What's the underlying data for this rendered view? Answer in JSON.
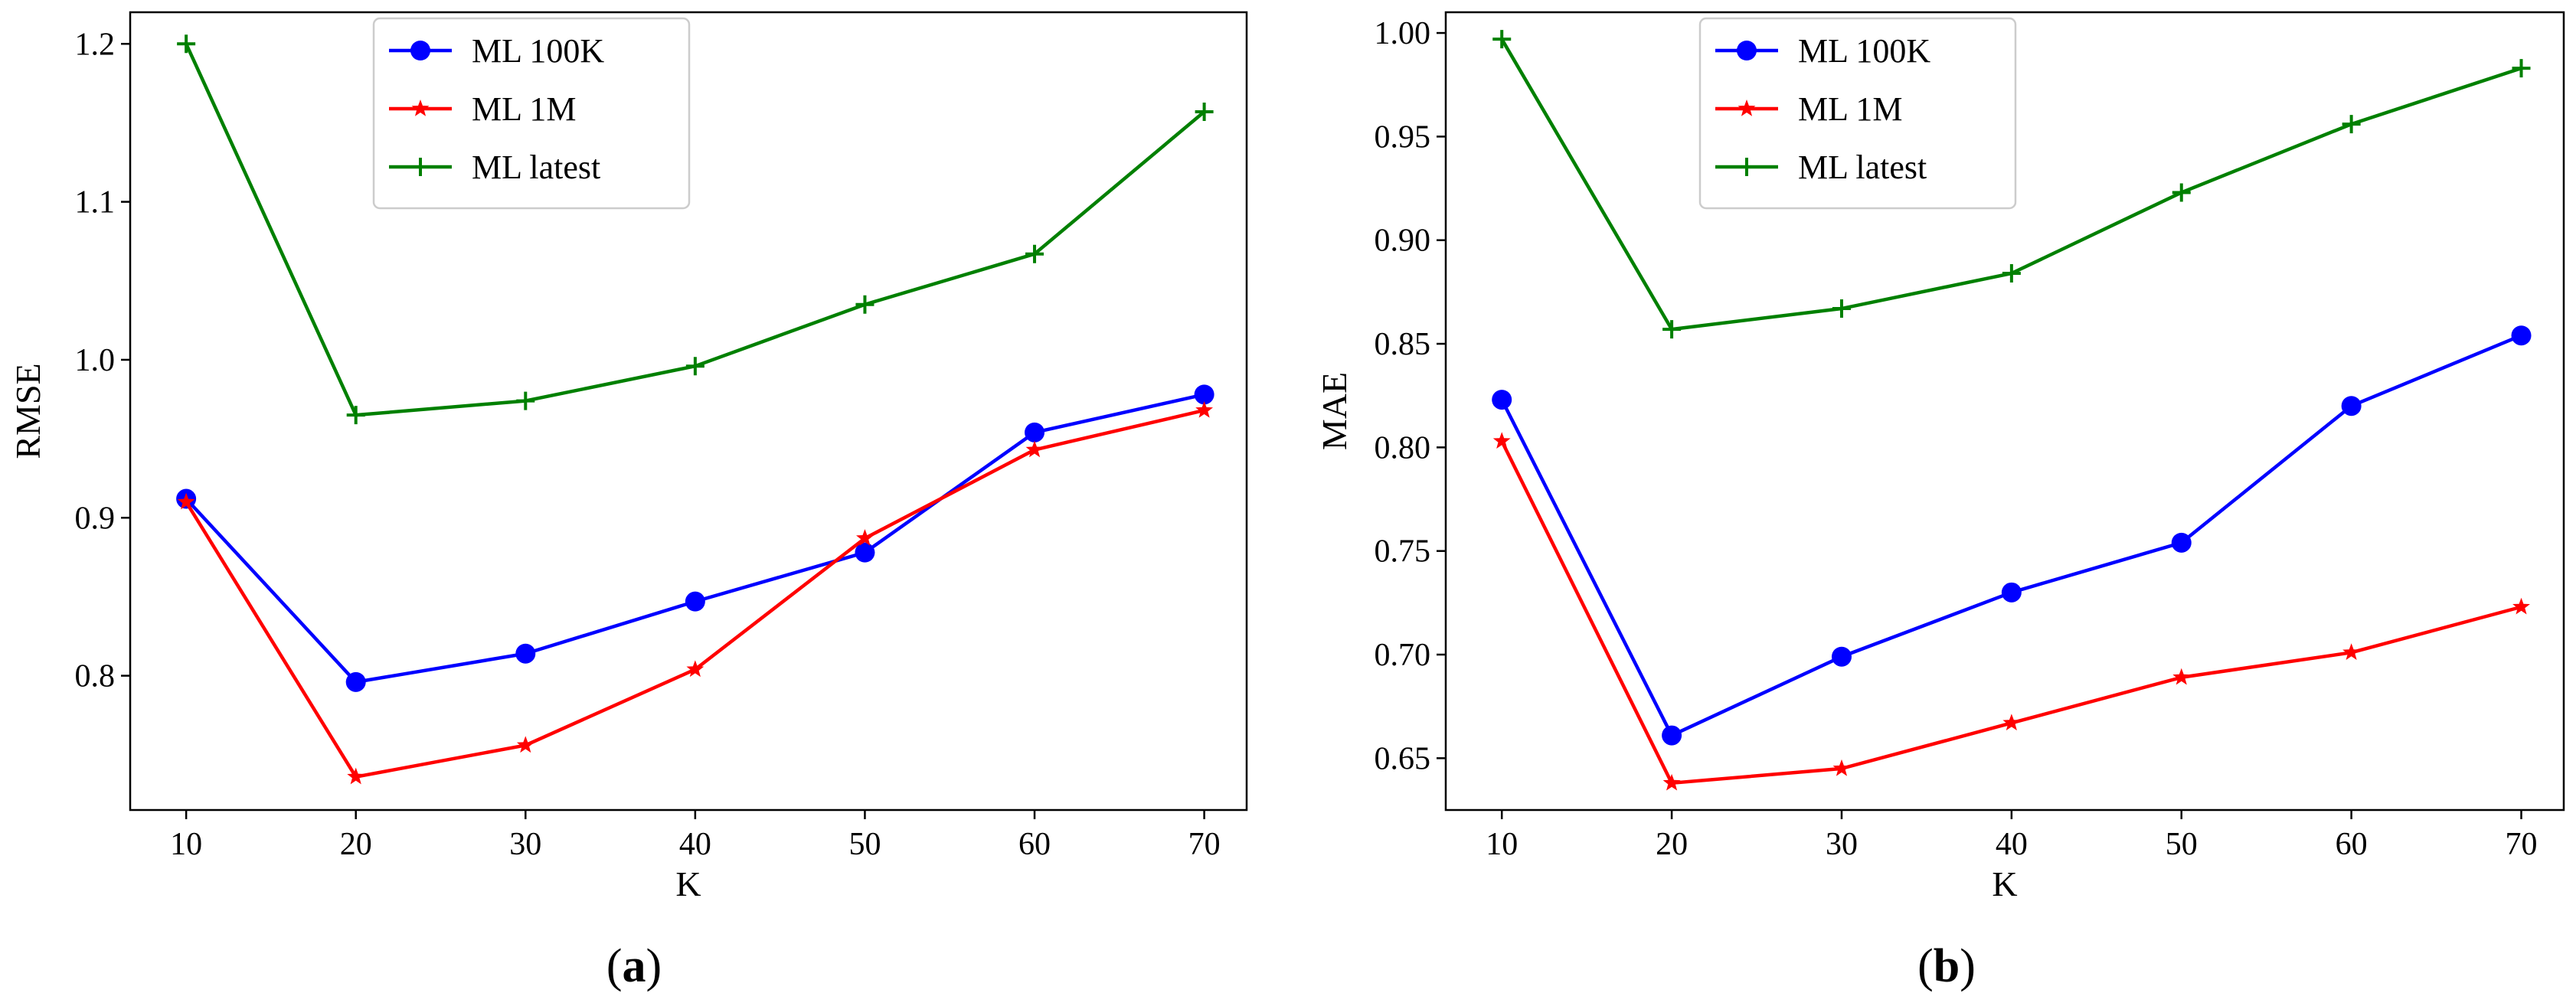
{
  "chart_data": [
    {
      "type": "line",
      "panel_label": "a",
      "xlabel": "K",
      "ylabel": "RMSE",
      "x": [
        10,
        20,
        30,
        40,
        50,
        60,
        70
      ],
      "xticks": [
        "10",
        "20",
        "30",
        "40",
        "50",
        "60",
        "70"
      ],
      "yticks": [
        "0.8",
        "0.9",
        "1.0",
        "1.1",
        "1.2"
      ],
      "ylim": [
        0.715,
        1.22
      ],
      "grid": false,
      "legend": "upper-center",
      "series": [
        {
          "name": "ML 100K",
          "color": "#0000ff",
          "marker": "circle",
          "values": [
            0.912,
            0.796,
            0.814,
            0.847,
            0.878,
            0.954,
            0.978
          ]
        },
        {
          "name": "ML 1M",
          "color": "#ff0000",
          "marker": "star",
          "values": [
            0.91,
            0.736,
            0.756,
            0.804,
            0.887,
            0.943,
            0.968
          ]
        },
        {
          "name": "ML latest",
          "color": "#008000",
          "marker": "plus",
          "values": [
            1.2,
            0.965,
            0.974,
            0.996,
            1.035,
            1.067,
            1.157
          ]
        }
      ]
    },
    {
      "type": "line",
      "panel_label": "b",
      "xlabel": "K",
      "ylabel": "MAE",
      "x": [
        10,
        20,
        30,
        40,
        50,
        60,
        70
      ],
      "xticks": [
        "10",
        "20",
        "30",
        "40",
        "50",
        "60",
        "70"
      ],
      "yticks": [
        "0.65",
        "0.70",
        "0.75",
        "0.80",
        "0.85",
        "0.90",
        "0.95",
        "1.00"
      ],
      "ylim": [
        0.625,
        1.01
      ],
      "grid": false,
      "legend": "upper-center",
      "series": [
        {
          "name": "ML 100K",
          "color": "#0000ff",
          "marker": "circle",
          "values": [
            0.823,
            0.661,
            0.699,
            0.73,
            0.754,
            0.82,
            0.854
          ]
        },
        {
          "name": "ML 1M",
          "color": "#ff0000",
          "marker": "star",
          "values": [
            0.803,
            0.638,
            0.645,
            0.667,
            0.689,
            0.701,
            0.723
          ]
        },
        {
          "name": "ML latest",
          "color": "#008000",
          "marker": "plus",
          "values": [
            0.997,
            0.857,
            0.867,
            0.884,
            0.923,
            0.956,
            0.983
          ]
        }
      ]
    }
  ]
}
